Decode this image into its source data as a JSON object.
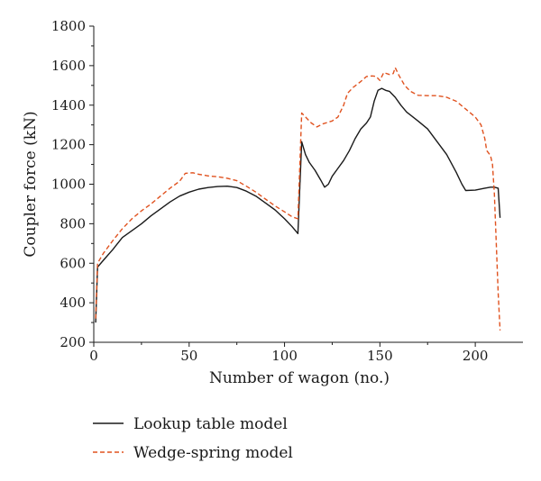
{
  "chart_data": {
    "type": "line",
    "xlabel": "Number of wagon (no.)",
    "ylabel": "Coupler force (kN)",
    "xlim": [
      0,
      225
    ],
    "ylim": [
      200,
      1800
    ],
    "x_ticks": [
      0,
      50,
      100,
      150,
      200
    ],
    "y_ticks": [
      200,
      400,
      600,
      800,
      1000,
      1200,
      1400,
      1600,
      1800
    ],
    "x_tick_labels": [
      "0",
      "50",
      "100",
      "150",
      "200"
    ],
    "y_tick_labels": [
      "200",
      "400",
      "600",
      "800",
      "1000",
      "1200",
      "1400",
      "1600",
      "1800"
    ],
    "grid": false,
    "legend_position": "bottom",
    "series": [
      {
        "name": "Lookup table model",
        "color": "#1a1a1a",
        "dash": "solid",
        "points": [
          [
            1,
            300
          ],
          [
            2,
            580
          ],
          [
            5,
            615
          ],
          [
            10,
            670
          ],
          [
            15,
            730
          ],
          [
            20,
            765
          ],
          [
            25,
            800
          ],
          [
            30,
            840
          ],
          [
            35,
            875
          ],
          [
            40,
            910
          ],
          [
            45,
            940
          ],
          [
            50,
            960
          ],
          [
            55,
            975
          ],
          [
            60,
            983
          ],
          [
            65,
            988
          ],
          [
            70,
            990
          ],
          [
            75,
            983
          ],
          [
            80,
            965
          ],
          [
            85,
            940
          ],
          [
            90,
            905
          ],
          [
            95,
            870
          ],
          [
            100,
            825
          ],
          [
            104,
            785
          ],
          [
            107,
            750
          ],
          [
            109,
            1215
          ],
          [
            111,
            1150
          ],
          [
            113,
            1110
          ],
          [
            116,
            1070
          ],
          [
            119,
            1020
          ],
          [
            121,
            985
          ],
          [
            123,
            1000
          ],
          [
            125,
            1040
          ],
          [
            128,
            1080
          ],
          [
            131,
            1120
          ],
          [
            134,
            1170
          ],
          [
            137,
            1230
          ],
          [
            140,
            1280
          ],
          [
            143,
            1310
          ],
          [
            145,
            1340
          ],
          [
            147,
            1420
          ],
          [
            149,
            1475
          ],
          [
            151,
            1485
          ],
          [
            153,
            1475
          ],
          [
            155,
            1470
          ],
          [
            158,
            1440
          ],
          [
            161,
            1400
          ],
          [
            164,
            1365
          ],
          [
            170,
            1320
          ],
          [
            175,
            1280
          ],
          [
            180,
            1215
          ],
          [
            185,
            1150
          ],
          [
            190,
            1060
          ],
          [
            193,
            1000
          ],
          [
            195,
            968
          ],
          [
            200,
            970
          ],
          [
            205,
            980
          ],
          [
            208,
            985
          ],
          [
            210,
            985
          ],
          [
            212,
            980
          ],
          [
            213,
            830
          ]
        ]
      },
      {
        "name": "Wedge-spring model",
        "color": "#e0521f",
        "dash": "dashed",
        "points": [
          [
            1,
            320
          ],
          [
            2,
            600
          ],
          [
            5,
            650
          ],
          [
            10,
            715
          ],
          [
            15,
            775
          ],
          [
            20,
            825
          ],
          [
            25,
            865
          ],
          [
            30,
            900
          ],
          [
            35,
            940
          ],
          [
            40,
            980
          ],
          [
            45,
            1015
          ],
          [
            48,
            1055
          ],
          [
            52,
            1058
          ],
          [
            55,
            1050
          ],
          [
            60,
            1042
          ],
          [
            65,
            1038
          ],
          [
            70,
            1030
          ],
          [
            75,
            1018
          ],
          [
            80,
            990
          ],
          [
            85,
            960
          ],
          [
            90,
            925
          ],
          [
            95,
            890
          ],
          [
            100,
            860
          ],
          [
            104,
            835
          ],
          [
            107,
            825
          ],
          [
            109,
            1360
          ],
          [
            111,
            1340
          ],
          [
            114,
            1310
          ],
          [
            117,
            1290
          ],
          [
            120,
            1305
          ],
          [
            125,
            1320
          ],
          [
            128,
            1340
          ],
          [
            131,
            1400
          ],
          [
            133,
            1460
          ],
          [
            136,
            1490
          ],
          [
            140,
            1520
          ],
          [
            143,
            1545
          ],
          [
            146,
            1548
          ],
          [
            148,
            1545
          ],
          [
            150,
            1525
          ],
          [
            152,
            1565
          ],
          [
            155,
            1555
          ],
          [
            157,
            1560
          ],
          [
            158,
            1590
          ],
          [
            160,
            1550
          ],
          [
            163,
            1500
          ],
          [
            166,
            1470
          ],
          [
            170,
            1450
          ],
          [
            175,
            1448
          ],
          [
            180,
            1448
          ],
          [
            185,
            1440
          ],
          [
            190,
            1420
          ],
          [
            195,
            1380
          ],
          [
            200,
            1340
          ],
          [
            203,
            1300
          ],
          [
            205,
            1230
          ],
          [
            206,
            1170
          ],
          [
            208,
            1145
          ],
          [
            209,
            1100
          ],
          [
            210,
            950
          ],
          [
            211,
            700
          ],
          [
            212,
            450
          ],
          [
            213,
            260
          ]
        ]
      }
    ]
  }
}
